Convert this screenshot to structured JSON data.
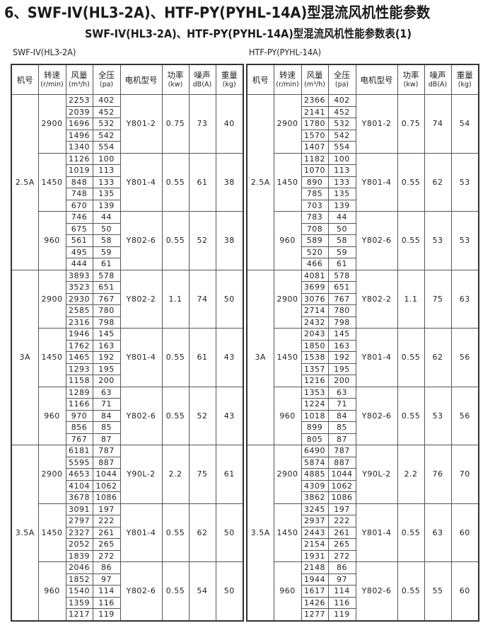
{
  "title": "6、SWF-IV(HL3-2A)、HTF-PY(PYHL-14A)型混流风机性能参数",
  "subtitle": "SWF-IV(HL3-2A)、HTF-PY(PYHL-14A)型混流风机性能参数表(1)",
  "headers": [
    {
      "name": "机号",
      "unit": ""
    },
    {
      "name": "转速",
      "unit": "(r/min)"
    },
    {
      "name": "风量",
      "unit": "(m³/h)"
    },
    {
      "name": "全压",
      "unit": "(pa)"
    },
    {
      "name": "电机型号",
      "unit": ""
    },
    {
      "name": "功率",
      "unit": "(kw)"
    },
    {
      "name": "噪声",
      "unit": "dB(A)"
    },
    {
      "name": "重量",
      "unit": "(kg)"
    }
  ],
  "tables": [
    {
      "label": "SWF-IV(HL3-2A)",
      "models": [
        {
          "model": "2.5A",
          "speeds": [
            {
              "rpm": "2900",
              "points": [
                [
                  "2253",
                  "402"
                ],
                [
                  "2039",
                  "452"
                ],
                [
                  "1696",
                  "532"
                ],
                [
                  "1496",
                  "542"
                ],
                [
                  "1340",
                  "554"
                ]
              ],
              "motor": "Y801-2",
              "power": "0.75",
              "noise": "73",
              "weight": "40"
            },
            {
              "rpm": "1450",
              "points": [
                [
                  "1126",
                  "100"
                ],
                [
                  "1019",
                  "113"
                ],
                [
                  "848",
                  "133"
                ],
                [
                  "748",
                  "135"
                ],
                [
                  "670",
                  "139"
                ]
              ],
              "motor": "Y801-4",
              "power": "0.55",
              "noise": "61",
              "weight": "38"
            },
            {
              "rpm": "960",
              "points": [
                [
                  "746",
                  "44"
                ],
                [
                  "675",
                  "50"
                ],
                [
                  "561",
                  "58"
                ],
                [
                  "495",
                  "59"
                ],
                [
                  "444",
                  "61"
                ]
              ],
              "motor": "Y802-6",
              "power": "0.55",
              "noise": "52",
              "weight": "38"
            }
          ]
        },
        {
          "model": "3A",
          "speeds": [
            {
              "rpm": "2900",
              "points": [
                [
                  "3893",
                  "578"
                ],
                [
                  "3523",
                  "651"
                ],
                [
                  "2930",
                  "767"
                ],
                [
                  "2585",
                  "780"
                ],
                [
                  "2316",
                  "798"
                ]
              ],
              "motor": "Y802-2",
              "power": "1.1",
              "noise": "74",
              "weight": "50"
            },
            {
              "rpm": "1450",
              "points": [
                [
                  "1946",
                  "145"
                ],
                [
                  "1762",
                  "163"
                ],
                [
                  "1465",
                  "192"
                ],
                [
                  "1293",
                  "195"
                ],
                [
                  "1158",
                  "200"
                ]
              ],
              "motor": "Y801-4",
              "power": "0.55",
              "noise": "61",
              "weight": "43"
            },
            {
              "rpm": "960",
              "points": [
                [
                  "1289",
                  "63"
                ],
                [
                  "1166",
                  "71"
                ],
                [
                  "970",
                  "84"
                ],
                [
                  "856",
                  "85"
                ],
                [
                  "767",
                  "87"
                ]
              ],
              "motor": "Y802-6",
              "power": "0.55",
              "noise": "52",
              "weight": "43"
            }
          ]
        },
        {
          "model": "3.5A",
          "speeds": [
            {
              "rpm": "2900",
              "points": [
                [
                  "6181",
                  "787"
                ],
                [
                  "5595",
                  "887"
                ],
                [
                  "4653",
                  "1044"
                ],
                [
                  "4104",
                  "1062"
                ],
                [
                  "3678",
                  "1086"
                ]
              ],
              "motor": "Y90L-2",
              "power": "2.2",
              "noise": "75",
              "weight": "61"
            },
            {
              "rpm": "1450",
              "points": [
                [
                  "3091",
                  "197"
                ],
                [
                  "2797",
                  "222"
                ],
                [
                  "2327",
                  "261"
                ],
                [
                  "2052",
                  "265"
                ],
                [
                  "1839",
                  "272"
                ]
              ],
              "motor": "Y801-4",
              "power": "0.55",
              "noise": "62",
              "weight": "50"
            },
            {
              "rpm": "960",
              "points": [
                [
                  "2046",
                  "86"
                ],
                [
                  "1852",
                  "97"
                ],
                [
                  "1540",
                  "114"
                ],
                [
                  "1359",
                  "116"
                ],
                [
                  "1217",
                  "119"
                ]
              ],
              "motor": "Y802-6",
              "power": "0.55",
              "noise": "54",
              "weight": "50"
            }
          ]
        }
      ]
    },
    {
      "label": "HTF-PY(PYHL-14A)",
      "models": [
        {
          "model": "2.5A",
          "speeds": [
            {
              "rpm": "2900",
              "points": [
                [
                  "2366",
                  "402"
                ],
                [
                  "2141",
                  "452"
                ],
                [
                  "1780",
                  "532"
                ],
                [
                  "1570",
                  "542"
                ],
                [
                  "1407",
                  "554"
                ]
              ],
              "motor": "Y801-2",
              "power": "0.75",
              "noise": "74",
              "weight": "54"
            },
            {
              "rpm": "1450",
              "points": [
                [
                  "1182",
                  "100"
                ],
                [
                  "1070",
                  "113"
                ],
                [
                  "890",
                  "133"
                ],
                [
                  "785",
                  "135"
                ],
                [
                  "703",
                  "139"
                ]
              ],
              "motor": "Y801-4",
              "power": "0.55",
              "noise": "62",
              "weight": "53"
            },
            {
              "rpm": "960",
              "points": [
                [
                  "783",
                  "44"
                ],
                [
                  "708",
                  "50"
                ],
                [
                  "589",
                  "58"
                ],
                [
                  "520",
                  "59"
                ],
                [
                  "466",
                  "61"
                ]
              ],
              "motor": "Y802-6",
              "power": "0.55",
              "noise": "53",
              "weight": "53"
            }
          ]
        },
        {
          "model": "3A",
          "speeds": [
            {
              "rpm": "2900",
              "points": [
                [
                  "4081",
                  "578"
                ],
                [
                  "3699",
                  "651"
                ],
                [
                  "3076",
                  "767"
                ],
                [
                  "2714",
                  "780"
                ],
                [
                  "2432",
                  "798"
                ]
              ],
              "motor": "Y802-2",
              "power": "1.1",
              "noise": "75",
              "weight": "63"
            },
            {
              "rpm": "1450",
              "points": [
                [
                  "2043",
                  "145"
                ],
                [
                  "1850",
                  "163"
                ],
                [
                  "1538",
                  "192"
                ],
                [
                  "1357",
                  "195"
                ],
                [
                  "1216",
                  "200"
                ]
              ],
              "motor": "Y801-4",
              "power": "0.55",
              "noise": "62",
              "weight": "56"
            },
            {
              "rpm": "960",
              "points": [
                [
                  "1353",
                  "63"
                ],
                [
                  "1224",
                  "71"
                ],
                [
                  "1018",
                  "84"
                ],
                [
                  "899",
                  "85"
                ],
                [
                  "805",
                  "87"
                ]
              ],
              "motor": "Y802-6",
              "power": "0.55",
              "noise": "53",
              "weight": "56"
            }
          ]
        },
        {
          "model": "3.5A",
          "speeds": [
            {
              "rpm": "2900",
              "points": [
                [
                  "6490",
                  "787"
                ],
                [
                  "5874",
                  "887"
                ],
                [
                  "4885",
                  "1044"
                ],
                [
                  "4309",
                  "1062"
                ],
                [
                  "3862",
                  "1086"
                ]
              ],
              "motor": "Y90L-2",
              "power": "2.2",
              "noise": "76",
              "weight": "70"
            },
            {
              "rpm": "1450",
              "points": [
                [
                  "3245",
                  "197"
                ],
                [
                  "2937",
                  "222"
                ],
                [
                  "2443",
                  "261"
                ],
                [
                  "2154",
                  "265"
                ],
                [
                  "1931",
                  "272"
                ]
              ],
              "motor": "Y801-4",
              "power": "0.55",
              "noise": "63",
              "weight": "60"
            },
            {
              "rpm": "960",
              "points": [
                [
                  "2148",
                  "86"
                ],
                [
                  "1944",
                  "97"
                ],
                [
                  "1617",
                  "114"
                ],
                [
                  "1426",
                  "116"
                ],
                [
                  "1277",
                  "119"
                ]
              ],
              "motor": "Y802-6",
              "power": "0.55",
              "noise": "55",
              "weight": "60"
            }
          ]
        }
      ]
    }
  ]
}
